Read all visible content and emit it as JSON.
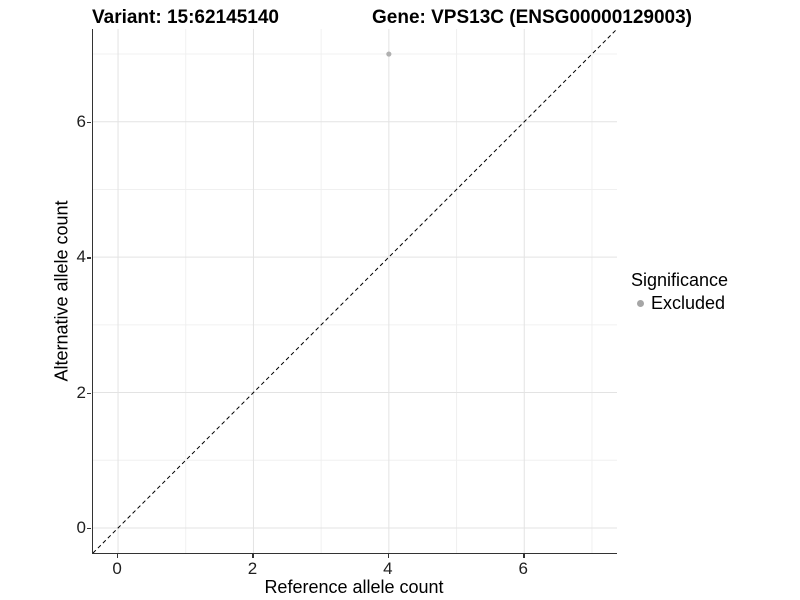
{
  "chart_data": {
    "type": "scatter",
    "title_left": "Variant: 15:62145140",
    "title_right": "Gene: VPS13C (ENSG00000129003)",
    "xlabel": "Reference allele count",
    "ylabel": "Alternative allele count",
    "xlim": [
      -0.37,
      7.37
    ],
    "ylim": [
      -0.37,
      7.37
    ],
    "x_ticks": [
      0,
      2,
      4,
      6
    ],
    "y_ticks": [
      0,
      2,
      4,
      6
    ],
    "x_minor_gridlines": [
      1,
      3,
      5,
      7
    ],
    "y_minor_gridlines": [
      1,
      3,
      5,
      7
    ],
    "grid": true,
    "colors": {
      "major_grid": "#e3e3e3",
      "minor_grid": "#f0f0f0",
      "axis_line": "#333333",
      "reference_line": "#000000"
    },
    "series": [
      {
        "name": "Excluded",
        "color": "#b0b0b0",
        "points": [
          {
            "x": 4,
            "y": 7
          }
        ]
      }
    ],
    "reference_line": {
      "type": "identity",
      "slope": 1,
      "intercept": 0,
      "style": "dashed"
    },
    "legend": {
      "title": "Significance",
      "position": "right",
      "items": [
        {
          "label": "Excluded",
          "color": "#a6a6a6"
        }
      ]
    }
  }
}
